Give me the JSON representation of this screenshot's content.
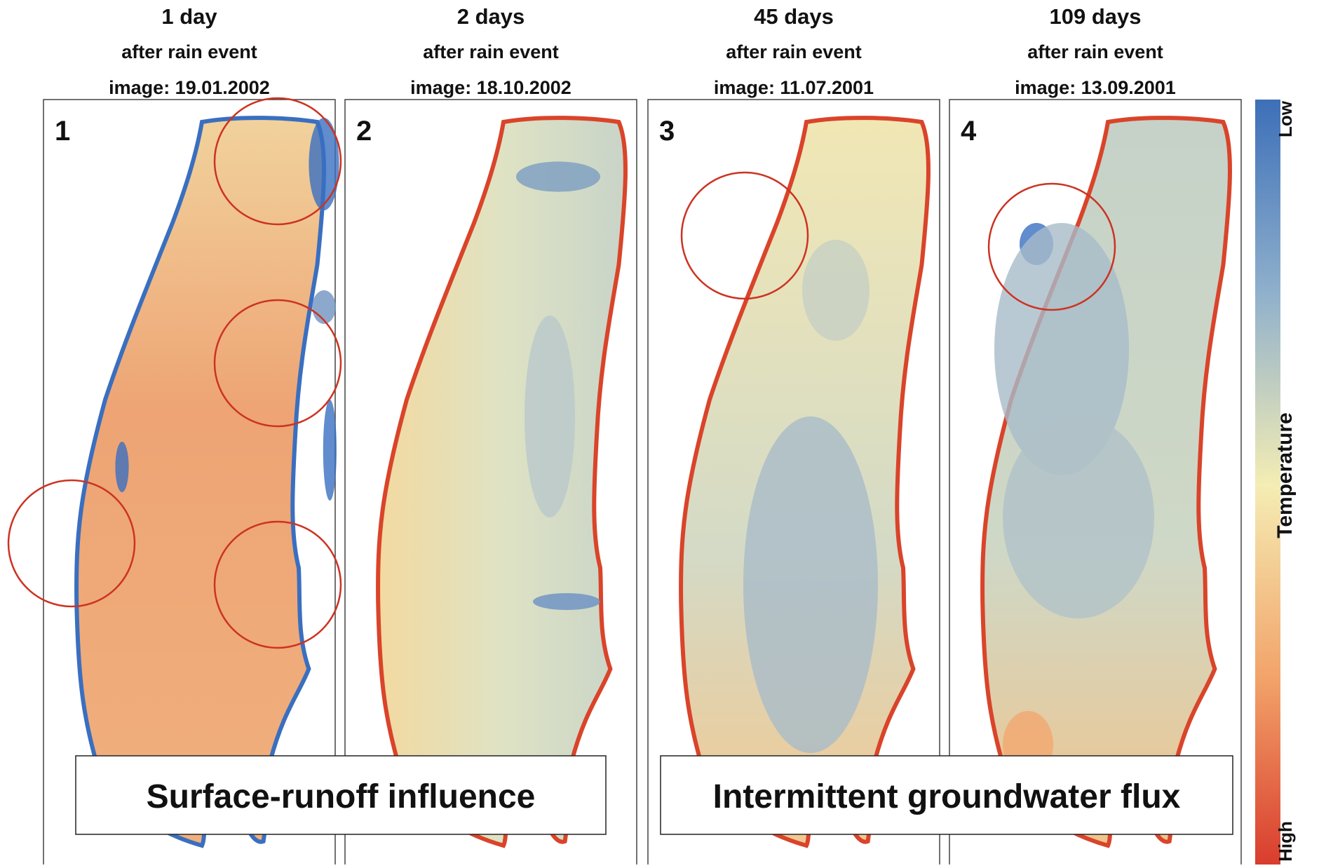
{
  "panels": [
    {
      "number": "1",
      "title": "1 day",
      "subtitle": "after rain event",
      "image_date": "image: 19.01.2002"
    },
    {
      "number": "2",
      "title": "2 days",
      "subtitle": "after rain event",
      "image_date": "image: 18.10.2002"
    },
    {
      "number": "3",
      "title": "45 days",
      "subtitle": "after rain event",
      "image_date": "image: 11.07.2001"
    },
    {
      "number": "4",
      "title": "109 days",
      "subtitle": "after rain event",
      "image_date": "image: 13.09.2001"
    }
  ],
  "labels": [
    "Surface-runoff influence",
    "Intermittent groundwater flux"
  ],
  "colorbar": {
    "low": "Low",
    "title": "Temperature",
    "high": "High"
  }
}
